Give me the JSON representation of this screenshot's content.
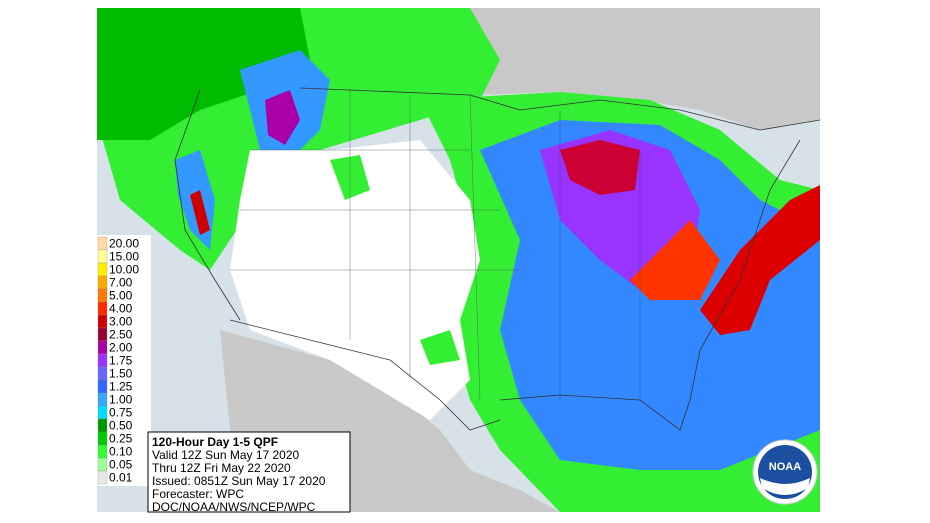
{
  "legend": [
    {
      "label": "20.00",
      "color": "#ffd9a6"
    },
    {
      "label": "15.00",
      "color": "#ffff99"
    },
    {
      "label": "10.00",
      "color": "#ffee00"
    },
    {
      "label": "7.00",
      "color": "#ffaa00"
    },
    {
      "label": "5.00",
      "color": "#ff7700"
    },
    {
      "label": "4.00",
      "color": "#ff2a00"
    },
    {
      "label": "3.00",
      "color": "#cc0000"
    },
    {
      "label": "2.50",
      "color": "#990033"
    },
    {
      "label": "2.00",
      "color": "#aa00aa"
    },
    {
      "label": "1.75",
      "color": "#9933ff"
    },
    {
      "label": "1.50",
      "color": "#6666ff"
    },
    {
      "label": "1.25",
      "color": "#3366ff"
    },
    {
      "label": "1.00",
      "color": "#33aaff"
    },
    {
      "label": "0.75",
      "color": "#00ddff"
    },
    {
      "label": "0.50",
      "color": "#009900"
    },
    {
      "label": "0.25",
      "color": "#00cc00"
    },
    {
      "label": "0.10",
      "color": "#33ff33"
    },
    {
      "label": "0.05",
      "color": "#99ff99"
    },
    {
      "label": "0.01",
      "color": "#e8e8e8"
    }
  ],
  "info": {
    "title": "120-Hour Day 1-5 QPF",
    "lines": [
      "Valid 12Z Sun May 17 2020",
      "Thru 12Z Fri May 22 2020",
      "Issued: 0851Z Sun May 17 2020",
      "Forecaster: WPC",
      "DOC/NOAA/NWS/NCEP/WPC"
    ]
  },
  "logo": "NOAA"
}
